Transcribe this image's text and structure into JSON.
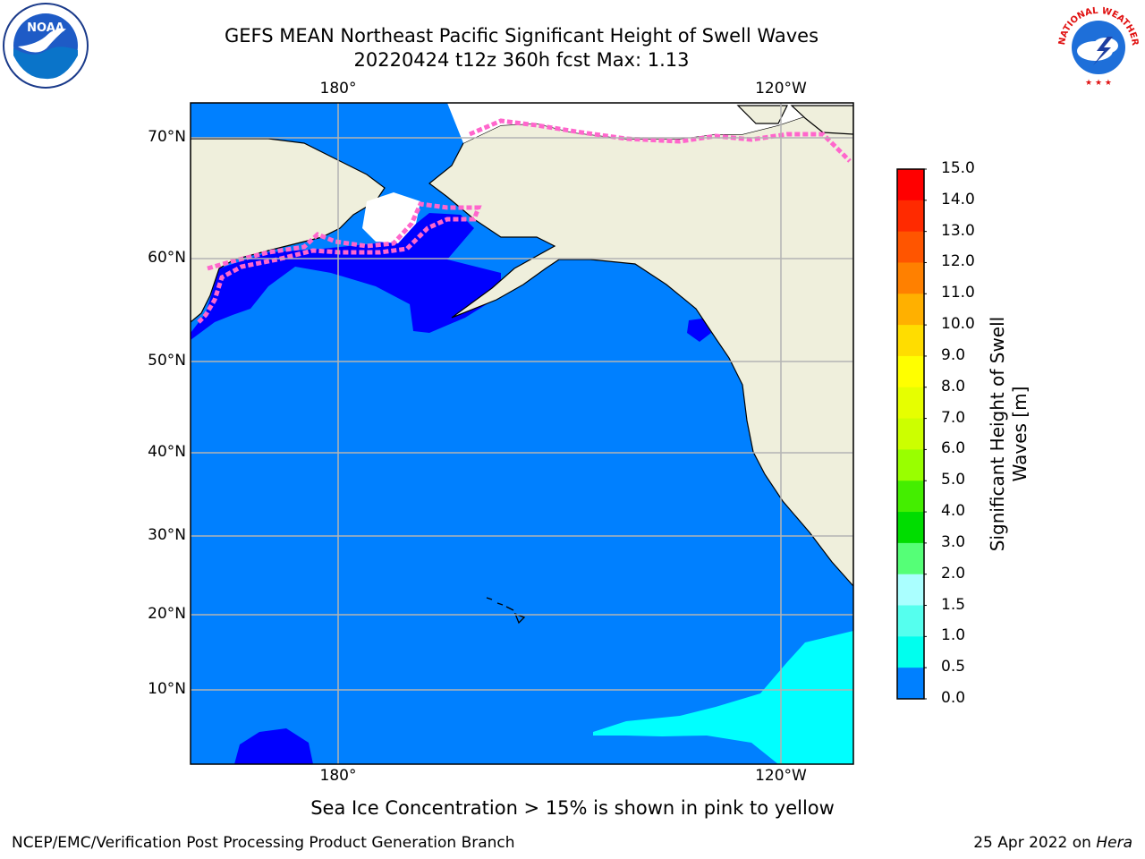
{
  "title_line1": "GEFS MEAN Northeast Pacific Significant Height of Swell Waves",
  "title_line2": "20220424 t12z 360h fcst   Max: 1.13",
  "lon_labels": [
    "180°",
    "120°W"
  ],
  "lat_labels": [
    "70°N",
    "60°N",
    "50°N",
    "40°N",
    "30°N",
    "20°N",
    "10°N"
  ],
  "colorbar": {
    "label_line1": "Significant Height of Swell",
    "label_line2": "Waves [m]",
    "ticks": [
      "15.0",
      "14.0",
      "13.0",
      "12.0",
      "11.0",
      "10.0",
      "9.0",
      "8.0",
      "7.0",
      "6.0",
      "5.0",
      "4.0",
      "3.0",
      "2.0",
      "1.5",
      "1.0",
      "0.5",
      "0.0"
    ],
    "colors": [
      "#ff0000",
      "#ff2a00",
      "#ff5500",
      "#ff8000",
      "#ffb000",
      "#ffdd00",
      "#ffff00",
      "#e6ff00",
      "#ccff00",
      "#99ff00",
      "#44ee00",
      "#00dd00",
      "#55ff77",
      "#aaffff",
      "#55ffee",
      "#00ffee",
      "#0080ff",
      "#0000ff"
    ]
  },
  "colors": {
    "land": "#efefdc",
    "ocean_low": "#0080ff",
    "ocean_very_low": "#0000ff",
    "ocean_mid": "#00ffff",
    "gridline": "#b4b4b4"
  },
  "logos": {
    "left": "noaa-logo",
    "right": "national-weather-service-logo",
    "left_text": "NOAA",
    "right_text": "NATIONAL WEATHER SERVICE"
  },
  "note": "Sea Ice Concentration > 15% is shown in pink to yellow",
  "footer_left": "NCEP/EMC/Verification Post Processing Product Generation Branch",
  "footer_right_date": "25 Apr 2022 on ",
  "footer_right_host": "Hera"
}
